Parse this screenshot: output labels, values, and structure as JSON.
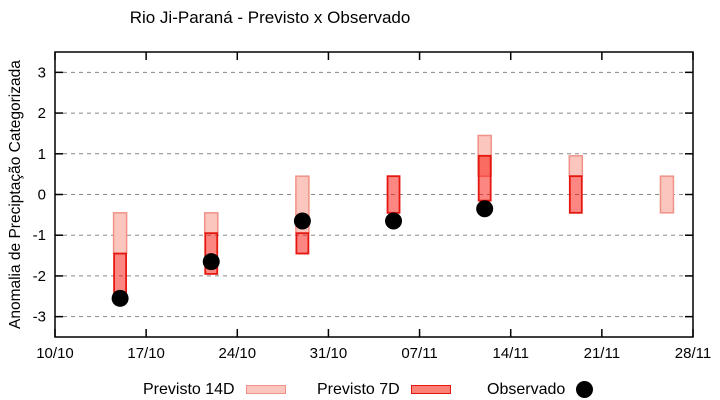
{
  "title": "Rio Ji-Paraná - Previsto x Observado",
  "legend": {
    "items": [
      {
        "label": "Previsto 14D",
        "swatch": "box-14d"
      },
      {
        "label": "Previsto 7D",
        "swatch": "box-7d"
      },
      {
        "label": "Observado",
        "swatch": "dot"
      }
    ]
  },
  "colors": {
    "previsto_14d_fill": "#fbc6bd",
    "previsto_14d_border": "#f09288",
    "previsto_7d_fill": "rgba(250,15,5,0.5)",
    "previsto_7d_border": "#e41810",
    "observado": "#000000",
    "grid": "#888888",
    "axis": "#000000"
  },
  "chart_data": {
    "type": "bar",
    "subtype": "range-bars-with-scatter",
    "title": "Rio Ji-Paraná - Previsto x Observado",
    "xlabel": "",
    "ylabel": "Anomalia de Preciptação Categorizada",
    "ylim": [
      -3.5,
      3.5
    ],
    "y_ticks": [
      "3",
      "2",
      "1",
      "0",
      "-1",
      "-2",
      "-3"
    ],
    "y_tick_values": [
      3,
      2,
      1,
      0,
      -1,
      -2,
      -3
    ],
    "grid": "horizontal dashed gray",
    "legend_position": "bottom center, outside plot",
    "x_axis_span_days": 49,
    "x_tick_labels": [
      "10/10",
      "17/10",
      "24/10",
      "31/10",
      "07/11",
      "14/11",
      "21/11",
      "28/11"
    ],
    "x_tick_day_offsets": [
      0,
      7,
      14,
      21,
      28,
      35,
      42,
      49
    ],
    "points": [
      {
        "date": "15/10",
        "day_offset": 5,
        "previsto_14d": [
          -1.45,
          -0.45
        ],
        "previsto_7d": [
          -2.45,
          -1.45
        ],
        "observado": -2.55
      },
      {
        "date": "22/10",
        "day_offset": 12,
        "previsto_14d": [
          -0.95,
          -0.45
        ],
        "previsto_7d": [
          -1.95,
          -0.95
        ],
        "observado": -1.65
      },
      {
        "date": "29/10",
        "day_offset": 19,
        "previsto_14d": [
          -0.95,
          0.45
        ],
        "previsto_7d": [
          -1.45,
          -0.95
        ],
        "observado": -0.65
      },
      {
        "date": "05/11",
        "day_offset": 26,
        "previsto_14d": null,
        "previsto_7d": [
          -0.45,
          0.45
        ],
        "observado": -0.65
      },
      {
        "date": "12/11",
        "day_offset": 33,
        "previsto_14d": [
          0.45,
          1.45
        ],
        "previsto_7d": [
          -0.15,
          0.95
        ],
        "observado": -0.35
      },
      {
        "date": "19/11",
        "day_offset": 40,
        "previsto_14d": [
          0.45,
          0.95
        ],
        "previsto_7d": [
          -0.45,
          0.45
        ],
        "observado": null
      },
      {
        "date": "26/11",
        "day_offset": 47,
        "previsto_14d": [
          -0.45,
          0.45
        ],
        "previsto_7d": null,
        "observado": null
      }
    ]
  }
}
